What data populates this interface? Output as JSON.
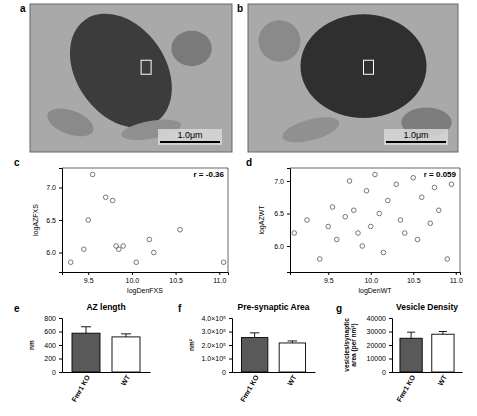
{
  "chart_data": [
    {
      "type": "image",
      "panel": "a",
      "annotations": [
        "1.0μm"
      ]
    },
    {
      "type": "image",
      "panel": "b",
      "annotations": [
        "1.0μm"
      ]
    },
    {
      "type": "scatter",
      "panel": "c",
      "x_label": "logDenFXS",
      "y_label": "logAZFXS",
      "annotations": [
        "r = -0.36"
      ],
      "x": [
        9.3,
        9.45,
        9.5,
        9.55,
        9.7,
        9.78,
        9.82,
        9.85,
        9.9,
        10.05,
        10.2,
        10.25,
        10.55,
        11.05
      ],
      "values": [
        5.85,
        6.05,
        6.5,
        7.2,
        6.85,
        6.8,
        6.1,
        6.05,
        6.1,
        5.85,
        6.2,
        6.0,
        6.35,
        5.85
      ],
      "xlim": [
        9.2,
        11.1
      ],
      "ylim": [
        5.7,
        7.3
      ],
      "xticks": [
        9.5,
        {
          "value": 10,
          "label": "10.0"
        },
        10.5,
        {
          "value": 11,
          "label": "11.0"
        }
      ],
      "yticks": [
        {
          "value": 6,
          "label": "6.0"
        },
        6.5,
        {
          "value": 7,
          "label": "7.0"
        }
      ],
      "marker": "circle-open",
      "color": "#555555"
    },
    {
      "type": "scatter",
      "panel": "d",
      "x_label": "logDenWT",
      "y_label": "logAZWT",
      "annotations": [
        "r = 0.059"
      ],
      "x": [
        9.1,
        9.25,
        9.4,
        9.5,
        9.55,
        9.6,
        9.7,
        9.75,
        9.8,
        9.85,
        9.9,
        9.95,
        10.0,
        10.05,
        10.1,
        10.15,
        10.2,
        10.3,
        10.35,
        10.4,
        10.5,
        10.55,
        10.6,
        10.7,
        10.75,
        10.8,
        10.9,
        10.95
      ],
      "values": [
        6.2,
        6.4,
        5.8,
        6.3,
        6.6,
        6.1,
        6.45,
        7.0,
        6.55,
        6.2,
        6.0,
        6.85,
        6.3,
        7.1,
        6.5,
        5.9,
        6.7,
        6.95,
        6.4,
        6.2,
        7.05,
        6.1,
        6.75,
        6.35,
        6.9,
        6.55,
        5.8,
        6.95
      ],
      "xlim": [
        9.05,
        11.05
      ],
      "ylim": [
        5.6,
        7.2
      ],
      "xticks": [
        9.5,
        {
          "value": 10,
          "label": "10.0"
        },
        10.5,
        {
          "value": 11,
          "label": "11.0"
        }
      ],
      "yticks": [
        {
          "value": 6,
          "label": "6.0"
        },
        6.5,
        {
          "value": 7,
          "label": "7.0"
        }
      ],
      "marker": "circle-open",
      "color": "#555555"
    },
    {
      "type": "bar",
      "panel": "e",
      "title": "AZ length",
      "y_label": "nm",
      "categories": [
        "Fmr1 KO",
        "WT"
      ],
      "values": [
        575,
        520
      ],
      "errors": [
        95,
        45
      ],
      "colors": [
        "#595959",
        "#ffffff"
      ],
      "ylim": [
        0,
        800
      ],
      "yticks": [
        0,
        200,
        400,
        600,
        800
      ]
    },
    {
      "type": "bar",
      "panel": "f",
      "title": "Pre-synaptic Area",
      "y_label": "nm²",
      "categories": [
        "Fmr1 KO",
        "WT"
      ],
      "values": [
        255000,
        215000
      ],
      "errors": [
        35000,
        15000
      ],
      "colors": [
        "#595959",
        "#ffffff"
      ],
      "ylim": [
        0,
        400000
      ],
      "yticks": [
        0,
        {
          "value": 100000,
          "label": "1.0×10⁵"
        },
        {
          "value": 200000,
          "label": "2.0×10⁵"
        },
        {
          "value": 300000,
          "label": "3.0×10⁵"
        },
        {
          "value": 400000,
          "label": "4.0×10⁵"
        }
      ]
    },
    {
      "type": "bar",
      "panel": "g",
      "title": "Vesicle Density",
      "y_label": "vesicles/synaptic area (per nm²)",
      "categories": [
        "Fmr1 KO",
        "WT"
      ],
      "values": [
        25000,
        28000
      ],
      "errors": [
        4500,
        2000
      ],
      "colors": [
        "#595959",
        "#ffffff"
      ],
      "ylim": [
        0,
        40000
      ],
      "yticks": [
        0,
        10000,
        20000,
        30000,
        40000
      ]
    }
  ]
}
